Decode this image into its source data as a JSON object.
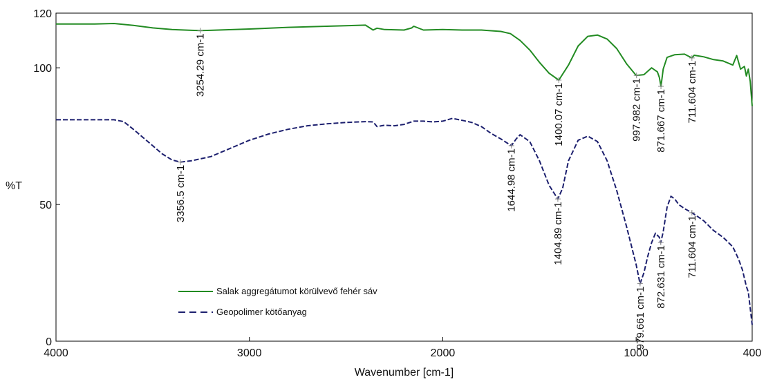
{
  "chart_data": {
    "type": "line",
    "xlabel": "Wavenumber [cm-1]",
    "ylabel": "%T",
    "xlim": [
      4000,
      400
    ],
    "ylim": [
      0,
      120
    ],
    "x_ticks": [
      "4000",
      "3000",
      "2000",
      "1000",
      "400"
    ],
    "y_ticks": [
      "120",
      "100",
      "50",
      "0"
    ],
    "grid": false,
    "legend_position": "lower-left",
    "colors": {
      "series1": "#228B22",
      "series2": "#1C1F6E",
      "marker": "#888888"
    },
    "series": [
      {
        "name": "Salak aggregátumot körülvevő fehér sáv",
        "style": "solid",
        "x": [
          4000,
          3900,
          3800,
          3700,
          3600,
          3500,
          3400,
          3300,
          3254,
          3200,
          3000,
          2800,
          2600,
          2400,
          2360,
          2340,
          2300,
          2200,
          2160,
          2150,
          2100,
          2000,
          1900,
          1800,
          1700,
          1650,
          1600,
          1550,
          1500,
          1450,
          1400,
          1350,
          1300,
          1250,
          1200,
          1150,
          1100,
          1050,
          1000,
          960,
          920,
          890,
          880,
          871.7,
          860,
          840,
          800,
          750,
          711.6,
          700,
          650,
          600,
          550,
          500,
          480,
          460,
          440,
          430,
          420,
          410,
          400
        ],
        "y": [
          116,
          116,
          116,
          116.2,
          115.5,
          114.6,
          114,
          113.7,
          113.6,
          113.7,
          114.2,
          114.8,
          115.2,
          115.6,
          113.8,
          114.5,
          114.0,
          113.8,
          114.6,
          115.2,
          113.8,
          114,
          113.8,
          113.8,
          113.3,
          112.5,
          110.0,
          106.5,
          102.0,
          98.0,
          95.5,
          101.0,
          108.0,
          111.5,
          112.0,
          110.5,
          107.0,
          101.5,
          97.2,
          97.5,
          100.0,
          98.5,
          96.5,
          93.2,
          99.5,
          103.8,
          104.8,
          105.0,
          103.6,
          104.6,
          104.0,
          103.0,
          102.5,
          101.0,
          104.5,
          99.5,
          100.5,
          97.0,
          99.5,
          95.0,
          86.0
        ]
      },
      {
        "name": "Geopolimer kötőanyag",
        "style": "dashed",
        "x": [
          4000,
          3900,
          3800,
          3700,
          3650,
          3600,
          3550,
          3500,
          3450,
          3400,
          3356.5,
          3300,
          3200,
          3100,
          3000,
          2900,
          2800,
          2700,
          2600,
          2500,
          2400,
          2360,
          2340,
          2300,
          2250,
          2200,
          2150,
          2100,
          2050,
          2000,
          1950,
          1900,
          1850,
          1800,
          1750,
          1700,
          1645,
          1620,
          1600,
          1550,
          1500,
          1450,
          1405,
          1380,
          1350,
          1300,
          1250,
          1200,
          1150,
          1100,
          1050,
          1000,
          980,
          960,
          940,
          920,
          900,
          880,
          873,
          860,
          840,
          820,
          800,
          780,
          750,
          711.6,
          680,
          650,
          600,
          550,
          500,
          470,
          450,
          430,
          420,
          410,
          400
        ],
        "y": [
          81,
          81,
          81,
          81,
          80.3,
          77.5,
          74.5,
          71.5,
          68.5,
          66.3,
          65.5,
          66.0,
          67.5,
          70.5,
          73.5,
          75.8,
          77.5,
          78.8,
          79.5,
          80.0,
          80.3,
          80.2,
          78.5,
          79.0,
          78.8,
          79.3,
          80.5,
          80.5,
          80.2,
          80.5,
          81.5,
          80.8,
          80.0,
          78.5,
          76.0,
          74.0,
          71.5,
          74.0,
          75.5,
          73.0,
          66.0,
          57.0,
          52.0,
          56.0,
          66.0,
          73.5,
          75.0,
          73.0,
          66.0,
          55.0,
          42.0,
          28.0,
          21.0,
          25.0,
          31.0,
          36.0,
          39.5,
          38.0,
          36.0,
          40.0,
          49.0,
          53.0,
          52.0,
          50.0,
          48.5,
          47.0,
          45.5,
          44.0,
          40.5,
          38.0,
          34.5,
          30.0,
          26.0,
          20.0,
          18.0,
          12.0,
          6.0
        ]
      }
    ],
    "annotations": [
      {
        "text": "3254.29 cm-1",
        "x": 3254.29,
        "series": 0
      },
      {
        "text": "1400.07 cm-1",
        "x": 1400.07,
        "series": 0
      },
      {
        "text": "997.982 cm-1",
        "x": 997.982,
        "series": 0
      },
      {
        "text": "871.667 cm-1",
        "x": 871.667,
        "series": 0
      },
      {
        "text": "711.604 cm-1",
        "x": 711.604,
        "series": 0
      },
      {
        "text": "3356.5 cm-1",
        "x": 3356.5,
        "series": 1
      },
      {
        "text": "1644.98 cm-1",
        "x": 1644.98,
        "series": 1
      },
      {
        "text": "1404.89 cm-1",
        "x": 1404.89,
        "series": 1
      },
      {
        "text": "979.661 cm-1",
        "x": 979.661,
        "series": 1
      },
      {
        "text": "872.631 cm-1",
        "x": 872.631,
        "series": 1
      },
      {
        "text": "711.604 cm-1",
        "x": 711.604,
        "series": 1
      }
    ]
  }
}
